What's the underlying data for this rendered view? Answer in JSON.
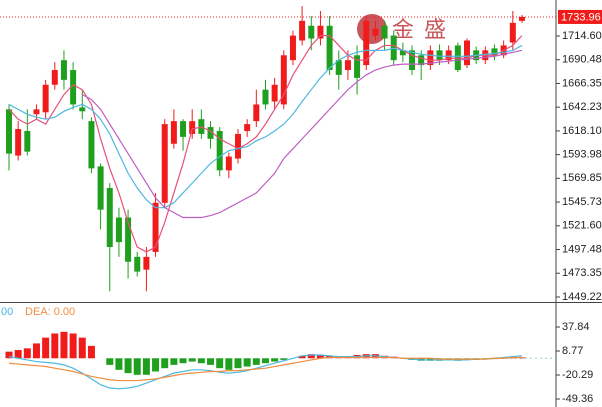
{
  "chart_data": [
    {
      "type": "candlestick",
      "watermark": "金盛",
      "last_price": 1733.96,
      "up_color": "#f01c1c",
      "down_color": "#1ea01e",
      "open": [
        1640,
        1593,
        1618,
        1635,
        1637,
        1665,
        1690,
        1680,
        1642,
        1628,
        1582,
        1560,
        1530,
        1530,
        1490,
        1477,
        1495,
        1545,
        1605,
        1628,
        1615,
        1630,
        1622,
        1618,
        1578,
        1590,
        1618,
        1628,
        1660,
        1648,
        1645,
        1690,
        1710,
        1725,
        1712,
        1725,
        1690,
        1680,
        1695,
        1685,
        1715,
        1725,
        1715,
        1700,
        1700,
        1695,
        1685,
        1700,
        1690,
        1705,
        1685,
        1700,
        1690,
        1702,
        1695,
        1708,
        1730
      ],
      "high": [
        1645,
        1628,
        1640,
        1645,
        1670,
        1688,
        1700,
        1688,
        1660,
        1632,
        1585,
        1565,
        1540,
        1538,
        1495,
        1500,
        1555,
        1630,
        1640,
        1630,
        1640,
        1640,
        1628,
        1622,
        1596,
        1620,
        1630,
        1660,
        1670,
        1672,
        1700,
        1720,
        1745,
        1735,
        1740,
        1735,
        1700,
        1700,
        1705,
        1735,
        1730,
        1730,
        1720,
        1708,
        1705,
        1700,
        1705,
        1706,
        1705,
        1708,
        1712,
        1704,
        1704,
        1706,
        1710,
        1740,
        1736
      ],
      "low": [
        1578,
        1588,
        1593,
        1630,
        1630,
        1660,
        1660,
        1640,
        1630,
        1575,
        1518,
        1455,
        1490,
        1468,
        1470,
        1455,
        1490,
        1540,
        1600,
        1598,
        1610,
        1610,
        1600,
        1572,
        1570,
        1585,
        1612,
        1622,
        1640,
        1640,
        1640,
        1685,
        1705,
        1700,
        1705,
        1675,
        1660,
        1670,
        1655,
        1680,
        1710,
        1700,
        1685,
        1688,
        1675,
        1670,
        1680,
        1685,
        1686,
        1678,
        1682,
        1686,
        1686,
        1690,
        1692,
        1700,
        1728
      ],
      "close": [
        1595,
        1620,
        1597,
        1640,
        1665,
        1680,
        1670,
        1645,
        1638,
        1580,
        1538,
        1500,
        1505,
        1485,
        1475,
        1490,
        1545,
        1625,
        1628,
        1612,
        1628,
        1615,
        1610,
        1578,
        1592,
        1615,
        1625,
        1645,
        1645,
        1665,
        1695,
        1715,
        1730,
        1712,
        1725,
        1680,
        1675,
        1690,
        1672,
        1730,
        1722,
        1712,
        1690,
        1695,
        1680,
        1685,
        1700,
        1690,
        1700,
        1680,
        1710,
        1690,
        1700,
        1695,
        1705,
        1728,
        1734
      ],
      "ma_lines": [
        {
          "color": "#e8507a",
          "values": [
            1640,
            1630,
            1625,
            1630,
            1625,
            1640,
            1655,
            1665,
            1660,
            1645,
            1610,
            1580,
            1555,
            1525,
            1500,
            1495,
            1500,
            1525,
            1555,
            1585,
            1620,
            1622,
            1618,
            1610,
            1605,
            1600,
            1605,
            1612,
            1625,
            1640,
            1655,
            1675,
            1690,
            1705,
            1715,
            1715,
            1705,
            1695,
            1690,
            1690,
            1700,
            1705,
            1705,
            1700,
            1695,
            1692,
            1690,
            1690,
            1692,
            1692,
            1692,
            1695,
            1695,
            1695,
            1700,
            1705,
            1715
          ]
        },
        {
          "color": "#4db8e0",
          "values": [
            1645,
            1640,
            1635,
            1632,
            1630,
            1632,
            1638,
            1642,
            1645,
            1640,
            1630,
            1615,
            1595,
            1575,
            1560,
            1548,
            1540,
            1540,
            1545,
            1555,
            1565,
            1575,
            1585,
            1592,
            1598,
            1600,
            1602,
            1608,
            1612,
            1618,
            1625,
            1635,
            1648,
            1660,
            1672,
            1682,
            1690,
            1695,
            1698,
            1700,
            1700,
            1700,
            1702,
            1700,
            1698,
            1696,
            1695,
            1694,
            1694,
            1694,
            1694,
            1695,
            1696,
            1697,
            1698,
            1700,
            1705
          ]
        },
        {
          "color": "#c05cc4",
          "values": [
            null,
            null,
            null,
            null,
            null,
            null,
            null,
            null,
            1655,
            1650,
            1640,
            1625,
            1610,
            1595,
            1580,
            1565,
            1550,
            1540,
            1535,
            1530,
            1530,
            1530,
            1532,
            1535,
            1540,
            1545,
            1550,
            1555,
            1565,
            1575,
            1590,
            1600,
            1610,
            1620,
            1630,
            1640,
            1650,
            1660,
            1668,
            1675,
            1680,
            1683,
            1685,
            1686,
            1686,
            1686,
            1687,
            1688,
            1689,
            1690,
            1691,
            1692,
            1693,
            1694,
            1696,
            1698,
            1700
          ]
        }
      ],
      "ylim": [
        1444.1,
        1751.2
      ],
      "yticks": [
        {
          "value": 1714.6,
          "label": "1714.60"
        },
        1690.48,
        1666.35,
        1642.23,
        {
          "value": 1618.1,
          "label": "1618.10"
        },
        1593.98,
        1569.85,
        1545.73,
        {
          "value": 1521.6,
          "label": "1521.60"
        },
        1497.48,
        1473.35,
        1449.22
      ]
    },
    {
      "type": "macd",
      "dif_label": ".00",
      "dea_label": "DEA: 0.00",
      "dif_color": "#4db8e0",
      "dea_color": "#f08c3c",
      "up_color": "#f01c1c",
      "down_color": "#1ea01e",
      "values": [
        8,
        10,
        12,
        18,
        25,
        30,
        32,
        30,
        25,
        15,
        0,
        -8,
        -14,
        -18,
        -20,
        -20,
        -16,
        -12,
        -8,
        -6,
        -4,
        -6,
        -8,
        -12,
        -14,
        -12,
        -10,
        -8,
        -6,
        -4,
        -2,
        0,
        3,
        5,
        4,
        3,
        2,
        2,
        4,
        5,
        5,
        3,
        2,
        0,
        -2,
        -3,
        -3,
        -3,
        -2,
        -3,
        -2,
        -2,
        -1,
        -1,
        0,
        1,
        1
      ],
      "dif": [
        2,
        0,
        -2,
        -4,
        -5,
        -6,
        -8,
        -12,
        -18,
        -25,
        -32,
        -36,
        -37,
        -36,
        -34,
        -30,
        -26,
        -22,
        -18,
        -16,
        -14,
        -14,
        -15,
        -17,
        -18,
        -17,
        -15,
        -12,
        -9,
        -6,
        -3,
        0,
        3,
        4,
        4,
        3,
        2,
        2,
        2,
        3,
        3,
        2,
        1,
        0,
        -1,
        -2,
        -2,
        -2,
        -2,
        -2,
        -2,
        -1,
        -1,
        0,
        1,
        2,
        3
      ],
      "dea": [
        -6,
        -7,
        -8,
        -9,
        -10,
        -12,
        -14,
        -16,
        -19,
        -22,
        -24,
        -26,
        -27,
        -27,
        -27,
        -26,
        -25,
        -23,
        -21,
        -19,
        -18,
        -17,
        -16,
        -16,
        -15,
        -15,
        -14,
        -13,
        -12,
        -10,
        -8,
        -6,
        -4,
        -2,
        0,
        1,
        1,
        1,
        1,
        1,
        1,
        1,
        1,
        0,
        0,
        0,
        0,
        -1,
        -1,
        -1,
        -1,
        -1,
        -1,
        0,
        0,
        1,
        1
      ],
      "ylim": [
        -59.0,
        64.5
      ],
      "yticks": [
        37.84,
        8.77,
        -20.29,
        -49.36
      ]
    }
  ]
}
